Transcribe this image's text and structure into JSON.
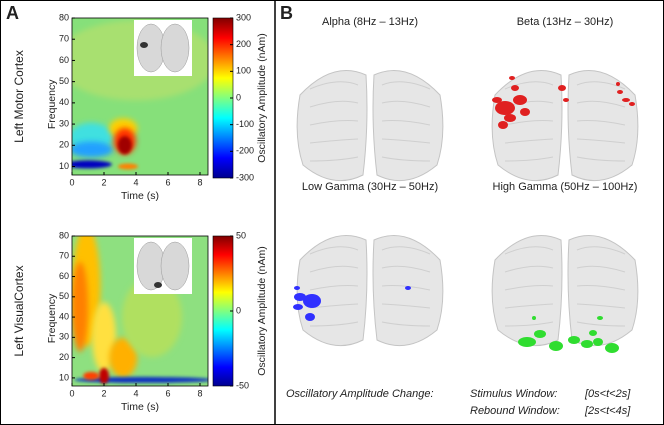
{
  "panel_a": {
    "label": "A",
    "plots": [
      {
        "row_label": "Left Motor Cortex",
        "ylabel": "Frequency",
        "xlabel": "Time (s)",
        "xlim": [
          0,
          8.5
        ],
        "xticks": [
          0,
          2,
          4,
          6,
          8
        ],
        "ylim": [
          6,
          80
        ],
        "yticks": [
          10,
          20,
          30,
          40,
          50,
          60,
          70,
          80
        ],
        "colorbar": {
          "label": "Oscillatory Amplitude (nAm)",
          "lim": [
            -300,
            300
          ],
          "ticks": [
            -300,
            -200,
            -100,
            0,
            100,
            200,
            300
          ]
        }
      },
      {
        "row_label": "Left VisualCortex",
        "ylabel": "Frequency",
        "xlabel": "Time (s)",
        "xlim": [
          0,
          8.5
        ],
        "xticks": [
          0,
          2,
          4,
          6,
          8
        ],
        "ylim": [
          6,
          80
        ],
        "yticks": [
          10,
          20,
          30,
          40,
          50,
          60,
          70,
          80
        ],
        "colorbar": {
          "label": "Oscillatory Amplitude (nAm)",
          "lim": [
            -50,
            50
          ],
          "ticks": [
            -50,
            0,
            50
          ]
        }
      }
    ]
  },
  "panel_b": {
    "label": "B",
    "maps": [
      {
        "title": "Alpha (8Hz – 13Hz)"
      },
      {
        "title": "Beta (13Hz – 30Hz)"
      },
      {
        "title": "Low Gamma (30Hz – 50Hz)"
      },
      {
        "title": "High Gamma (50Hz – 100Hz)"
      }
    ],
    "legend": {
      "label": "Oscillatory Amplitude Change:",
      "windows": [
        {
          "name": "Stimulus Window:",
          "range": "[0s<t<2s]"
        },
        {
          "name": "Rebound Window:",
          "range": "[2s<t<4s]"
        }
      ]
    }
  }
}
